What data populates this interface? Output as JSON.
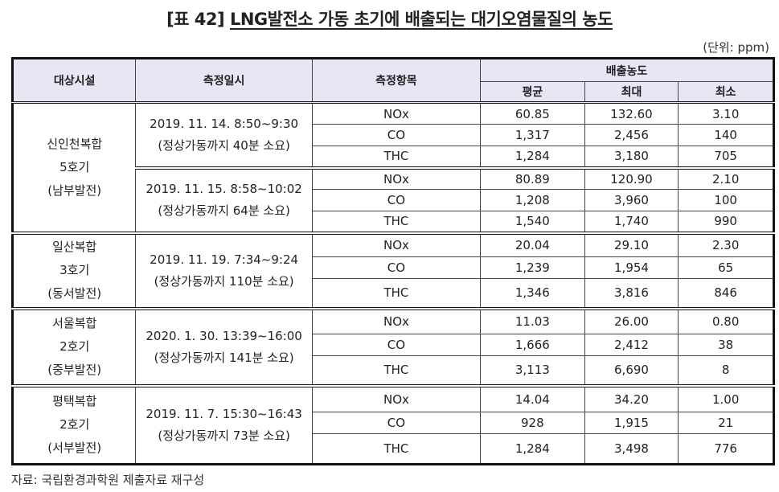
{
  "title": {
    "prefix": "[표 42]",
    "text": "LNG발전소 가동 초기에 배출되는 대기오염물질의 농도"
  },
  "unit": "(단위: ppm)",
  "headers": {
    "facility": "대상시설",
    "datetime": "측정일시",
    "item": "측정항목",
    "emission": "배출농도",
    "avg": "평균",
    "max": "최대",
    "min": "최소"
  },
  "groups": [
    {
      "facility": [
        "신인천복합",
        "5호기",
        "(남부발전)"
      ],
      "sessions": [
        {
          "date": "2019. 11. 14. 8:50~9:30",
          "duration": "(정상가동까지 40분 소요)",
          "rows": [
            [
              "NOx",
              "60.85",
              "132.60",
              "3.10"
            ],
            [
              "CO",
              "1,317",
              "2,456",
              "140"
            ],
            [
              "THC",
              "1,284",
              "3,180",
              "705"
            ]
          ]
        },
        {
          "date": "2019. 11. 15. 8:58~10:02",
          "duration": "(정상가동까지 64분 소요)",
          "rows": [
            [
              "NOx",
              "80.89",
              "120.90",
              "2.10"
            ],
            [
              "CO",
              "1,208",
              "3,960",
              "100"
            ],
            [
              "THC",
              "1,540",
              "1,740",
              "990"
            ]
          ]
        }
      ]
    },
    {
      "facility": [
        "일산복합",
        "3호기",
        "(동서발전)"
      ],
      "sessions": [
        {
          "date": "2019. 11. 19. 7:34~9:24",
          "duration": "(정상가동까지 110분 소요)",
          "rows": [
            [
              "NOx",
              "20.04",
              "29.10",
              "2.30"
            ],
            [
              "CO",
              "1,239",
              "1,954",
              "65"
            ],
            [
              "THC",
              "1,346",
              "3,816",
              "846"
            ]
          ]
        }
      ]
    },
    {
      "facility": [
        "서울복합",
        "2호기",
        "(중부발전)"
      ],
      "sessions": [
        {
          "date": "2020. 1. 30. 13:39~16:00",
          "duration": "(정상가동까지 141분 소요)",
          "rows": [
            [
              "NOx",
              "11.03",
              "26.00",
              "0.80"
            ],
            [
              "CO",
              "1,666",
              "2,412",
              "38"
            ],
            [
              "THC",
              "3,113",
              "6,690",
              "8"
            ]
          ]
        }
      ]
    },
    {
      "facility": [
        "평택복합",
        "2호기",
        "(서부발전)"
      ],
      "sessions": [
        {
          "date": "2019. 11. 7. 15:30~16:43",
          "duration": "(정상가동까지 73분 소요)",
          "rows": [
            [
              "NOx",
              "14.04",
              "34.20",
              "1.00"
            ],
            [
              "CO",
              "928",
              "1,915",
              "21"
            ],
            [
              "THC",
              "1,284",
              "3,498",
              "776"
            ]
          ]
        }
      ]
    }
  ],
  "source": "자료: 국립환경과학원 제출자료 재구성"
}
